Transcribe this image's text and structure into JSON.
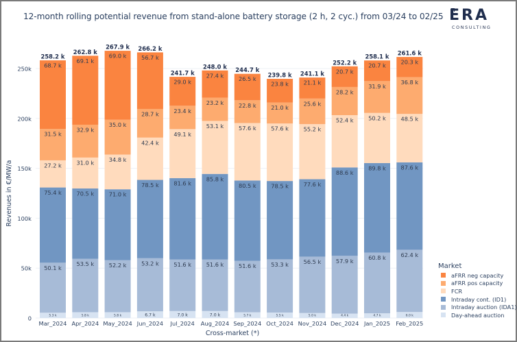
{
  "header": {
    "title": "12-month rolling potential revenue from stand-alone battery storage (2 h, 2 cyc.) from 03/24 to 02/25",
    "logo_main": "ERA",
    "logo_sub": "CONSULTING"
  },
  "chart_data": {
    "type": "bar",
    "stacked": true,
    "title": "12-month rolling potential revenue from stand-alone battery storage (2 h, 2 cyc.) from 03/24 to 02/25",
    "xlabel": "Cross-market (*)",
    "ylabel": "Revenues in €/MW/a",
    "ylim": [
      0,
      270000
    ],
    "yticks": [
      0,
      50000,
      100000,
      150000,
      200000,
      250000
    ],
    "ytick_labels": [
      "0",
      "50k",
      "100k",
      "150k",
      "200k",
      "250k"
    ],
    "grid": true,
    "legend_title": "Market",
    "legend_position": "bottom-right",
    "categories": [
      "Mar_2024",
      "Apr_2024",
      "May_2024",
      "Jun_2024",
      "Jul_2024",
      "Aug_2024",
      "Sep_2024",
      "Oct_2024",
      "Nov_2024",
      "Dec_2024",
      "Jan_2025",
      "Feb_2025"
    ],
    "series": [
      {
        "name": "Day-ahead auction",
        "color": "#d7e3f2",
        "values": [
          5.3,
          5.8,
          5.8,
          6.7,
          7.0,
          7.0,
          5.7,
          5.5,
          5.0,
          4.4,
          4.7,
          6.0
        ],
        "labels": [
          "5.3 k",
          "5.8 k",
          "5.8 k",
          "6.7 k",
          "7.0 k",
          "7.0 k",
          "5.7 k",
          "5.5 k",
          "5.0 k",
          "4.4 k",
          "4.7 k",
          "6.0 k"
        ]
      },
      {
        "name": "Intraday auction (IDA1)",
        "color": "#a7bbd7",
        "values": [
          50.1,
          53.5,
          52.2,
          53.2,
          51.6,
          51.6,
          51.6,
          53.3,
          56.5,
          57.9,
          60.8,
          62.4
        ],
        "labels": [
          "50.1 k",
          "53.5 k",
          "52.2 k",
          "53.2 k",
          "51.6 k",
          "51.6 k",
          "51.6 k",
          "53.3 k",
          "56.5 k",
          "57.9 k",
          "60.8 k",
          "62.4 k"
        ]
      },
      {
        "name": "Intraday cont. (ID1)",
        "color": "#7196c2",
        "values": [
          75.4,
          70.5,
          71.0,
          78.5,
          81.6,
          85.8,
          80.5,
          78.5,
          77.6,
          88.6,
          89.8,
          87.6
        ],
        "labels": [
          "75.4 k",
          "70.5 k",
          "71.0 k",
          "78.5 k",
          "81.6 k",
          "85.8 k",
          "80.5 k",
          "78.5 k",
          "77.6 k",
          "88.6 k",
          "89.8 k",
          "87.6 k"
        ]
      },
      {
        "name": "FCR",
        "color": "#ffdbbd",
        "values": [
          27.2,
          31.0,
          34.8,
          42.4,
          49.1,
          53.1,
          57.6,
          57.6,
          55.2,
          52.4,
          50.2,
          48.5
        ],
        "labels": [
          "27.2 k",
          "31.0 k",
          "34.8 k",
          "42.4 k",
          "49.1 k",
          "53.1 k",
          "57.6 k",
          "57.6 k",
          "55.2 k",
          "52.4 k",
          "50.2 k",
          "48.5 k"
        ]
      },
      {
        "name": "aFRR pos capacity",
        "color": "#fdab6f",
        "values": [
          31.5,
          32.9,
          35.0,
          28.7,
          23.4,
          23.2,
          22.8,
          21.0,
          25.6,
          28.2,
          31.9,
          36.8
        ],
        "labels": [
          "31.5 k",
          "32.9 k",
          "35.0 k",
          "28.7 k",
          "23.4 k",
          "23.2 k",
          "22.8 k",
          "21.0 k",
          "25.6 k",
          "28.2 k",
          "31.9 k",
          "36.8 k"
        ]
      },
      {
        "name": "aFRR neg capacity",
        "color": "#fa8440",
        "values": [
          68.7,
          69.1,
          69.0,
          56.7,
          29.0,
          27.4,
          26.5,
          23.8,
          21.1,
          20.7,
          20.7,
          20.3
        ],
        "labels": [
          "68.7 k",
          "69.1 k",
          "69.0 k",
          "56.7 k",
          "29.0 k",
          "27.4 k",
          "26.5 k",
          "23.8 k",
          "21.1 k",
          "20.7 k",
          "20.7 k",
          "20.3 k"
        ]
      }
    ],
    "totals": [
      258.2,
      262.8,
      267.9,
      266.2,
      241.7,
      248.0,
      244.7,
      239.8,
      241.1,
      252.2,
      258.1,
      261.6
    ],
    "total_labels": [
      "258.2 k",
      "262.8 k",
      "267.9 k",
      "266.2 k",
      "241.7 k",
      "248.0 k",
      "244.7 k",
      "239.8 k",
      "241.1 k",
      "252.2 k",
      "258.1 k",
      "261.6 k"
    ],
    "value_unit": "k €/MW/a"
  },
  "legend": {
    "title": "Market",
    "items": [
      {
        "label": "aFRR neg capacity",
        "color": "#fa8440"
      },
      {
        "label": "aFRR pos capacity",
        "color": "#fdab6f"
      },
      {
        "label": "FCR",
        "color": "#ffdbbd"
      },
      {
        "label": "Intraday cont. (ID1)",
        "color": "#7196c2"
      },
      {
        "label": "Intraday auction (IDA1)",
        "color": "#a7bbd7"
      },
      {
        "label": "Day-ahead auction",
        "color": "#d7e3f2"
      }
    ]
  }
}
